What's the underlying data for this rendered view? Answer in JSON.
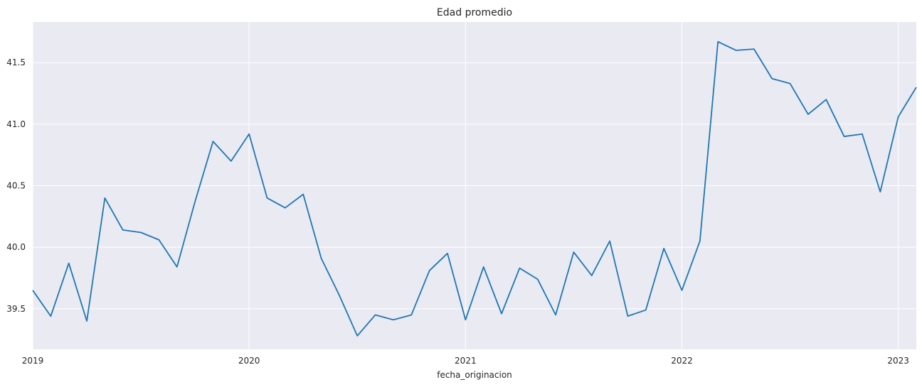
{
  "chart_data": {
    "type": "line",
    "title": "Edad promedio",
    "xlabel": "fecha_originacion",
    "ylabel": "",
    "grid": true,
    "background_color": "#eaeaf2",
    "line_color": "#1f77b4",
    "xlim": [
      "2019-01",
      "2023-02"
    ],
    "ylim": [
      39.17,
      41.83
    ],
    "x_ticks": [
      "2019",
      "2020",
      "2021",
      "2022",
      "2023"
    ],
    "y_ticks": [
      "39.5",
      "40.0",
      "40.5",
      "41.0",
      "41.5"
    ],
    "series": [
      {
        "x": [
          "2019-01",
          "2019-02",
          "2019-03",
          "2019-04",
          "2019-05",
          "2019-06",
          "2019-07",
          "2019-08",
          "2019-09",
          "2019-10",
          "2019-11",
          "2019-12",
          "2020-01",
          "2020-02",
          "2020-03",
          "2020-04",
          "2020-05",
          "2020-06",
          "2020-07",
          "2020-08",
          "2020-09",
          "2020-10",
          "2020-11",
          "2020-12",
          "2021-01",
          "2021-02",
          "2021-03",
          "2021-04",
          "2021-05",
          "2021-06",
          "2021-07",
          "2021-08",
          "2021-09",
          "2021-10",
          "2021-11",
          "2021-12",
          "2022-01",
          "2022-02",
          "2022-03",
          "2022-04",
          "2022-05",
          "2022-06",
          "2022-07",
          "2022-08",
          "2022-09",
          "2022-10",
          "2022-11",
          "2022-12",
          "2023-01",
          "2023-02"
        ],
        "values": [
          39.65,
          39.44,
          39.87,
          39.4,
          40.4,
          40.14,
          40.12,
          40.06,
          39.84,
          40.37,
          40.86,
          40.7,
          40.92,
          40.4,
          40.32,
          40.43,
          39.91,
          39.61,
          39.28,
          39.45,
          39.41,
          39.45,
          39.81,
          39.95,
          39.41,
          39.84,
          39.46,
          39.83,
          39.74,
          39.45,
          39.96,
          39.77,
          40.05,
          39.44,
          39.49,
          39.99,
          39.65,
          40.05,
          41.67,
          41.6,
          41.61,
          41.37,
          41.33,
          41.08,
          41.2,
          40.9,
          40.92,
          40.45,
          41.06,
          41.3
        ]
      }
    ]
  }
}
